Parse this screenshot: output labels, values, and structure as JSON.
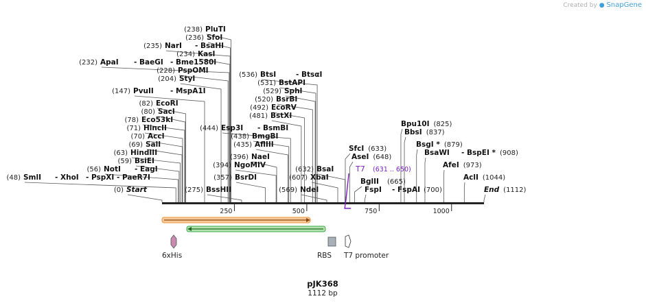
{
  "header": {
    "created_by": "Created by",
    "brand": "SnapGene"
  },
  "plasmid": {
    "name": "pJK368",
    "length_label": "1112 bp",
    "length": 1112
  },
  "axis": {
    "ticks": [
      250,
      500,
      750,
      1000
    ],
    "tick_labels": [
      "250",
      "500",
      "750",
      "1000"
    ]
  },
  "colors": {
    "primer": "#7a1fc4",
    "orf_orange": "#e89a3c",
    "orf_green": "#3aa84a"
  },
  "sites": [
    {
      "name": "Start",
      "pos": 0,
      "pos_label": "(0)",
      "italic": true
    },
    {
      "name": "SmlI",
      "pos": 48,
      "pos_label": "(48)",
      "pre": ""
    },
    {
      "name": "XhoI",
      "pos": 48,
      "pos_label": "",
      "pre": "- "
    },
    {
      "name": "PspXI",
      "pos": 48,
      "pos_label": "",
      "pre": "- "
    },
    {
      "name": "PaeR7I",
      "pos": 48,
      "pos_label": "",
      "pre": "- "
    },
    {
      "name": "NotI",
      "pos": 56,
      "pos_label": "(56)"
    },
    {
      "name": "EagI",
      "pos": 56,
      "pos_label": "",
      "pre": "- "
    },
    {
      "name": "BsiEI",
      "pos": 59,
      "pos_label": "(59)"
    },
    {
      "name": "HindIII",
      "pos": 63,
      "pos_label": "(63)"
    },
    {
      "name": "SalI",
      "pos": 69,
      "pos_label": "(69)"
    },
    {
      "name": "AccI",
      "pos": 70,
      "pos_label": "(70)"
    },
    {
      "name": "HincII",
      "pos": 71,
      "pos_label": "(71)"
    },
    {
      "name": "Eco53kI",
      "pos": 78,
      "pos_label": "(78)"
    },
    {
      "name": "SacI",
      "pos": 80,
      "pos_label": "(80)"
    },
    {
      "name": "EcoRI",
      "pos": 82,
      "pos_label": "(82)"
    },
    {
      "name": "PvuII",
      "pos": 147,
      "pos_label": "(147)"
    },
    {
      "name": "MspA1I",
      "pos": 147,
      "pos_label": "",
      "pre": "- "
    },
    {
      "name": "StyI",
      "pos": 204,
      "pos_label": "(204)"
    },
    {
      "name": "PspOMI",
      "pos": 228,
      "pos_label": "(228)"
    },
    {
      "name": "ApaI",
      "pos": 232,
      "pos_label": "(232)"
    },
    {
      "name": "BaeGI",
      "pos": 232,
      "pos_label": "",
      "pre": "- "
    },
    {
      "name": "Bme1580I",
      "pos": 232,
      "pos_label": "",
      "pre": "- "
    },
    {
      "name": "KasI",
      "pos": 234,
      "pos_label": "(234)"
    },
    {
      "name": "NarI",
      "pos": 235,
      "pos_label": "(235)"
    },
    {
      "name": "BsaHI",
      "pos": 235,
      "pos_label": "",
      "pre": "- "
    },
    {
      "name": "SfoI",
      "pos": 236,
      "pos_label": "(236)"
    },
    {
      "name": "PluTI",
      "pos": 238,
      "pos_label": "(238)"
    },
    {
      "name": "BssHII",
      "pos": 275,
      "pos_label": "(275)"
    },
    {
      "name": "BsrDI",
      "pos": 357,
      "pos_label": "(357)"
    },
    {
      "name": "NgoMIV",
      "pos": 394,
      "pos_label": "(394)"
    },
    {
      "name": "NaeI",
      "pos": 396,
      "pos_label": "(396)"
    },
    {
      "name": "AflIII",
      "pos": 435,
      "pos_label": "(435)"
    },
    {
      "name": "BmgBI",
      "pos": 438,
      "pos_label": "(438)"
    },
    {
      "name": "Esp3I",
      "pos": 444,
      "pos_label": "(444)"
    },
    {
      "name": "BsmBI",
      "pos": 444,
      "pos_label": "",
      "pre": "- "
    },
    {
      "name": "BstXI",
      "pos": 481,
      "pos_label": "(481)"
    },
    {
      "name": "EcoRV",
      "pos": 492,
      "pos_label": "(492)"
    },
    {
      "name": "BsrBI",
      "pos": 520,
      "pos_label": "(520)"
    },
    {
      "name": "SphI",
      "pos": 529,
      "pos_label": "(529)"
    },
    {
      "name": "BstAPI",
      "pos": 531,
      "pos_label": "(531)"
    },
    {
      "name": "BtsI",
      "pos": 536,
      "pos_label": "(536)"
    },
    {
      "name": "BtsαI",
      "pos": 536,
      "pos_label": "",
      "pre": "- "
    },
    {
      "name": "NdeI",
      "pos": 569,
      "pos_label": "(569)"
    },
    {
      "name": "XbaI",
      "pos": 607,
      "pos_label": "(607)"
    },
    {
      "name": "BsaI",
      "pos": 632,
      "pos_label": "(632)"
    },
    {
      "name": "SfcI",
      "pos": 633,
      "pos_label": "(633)"
    },
    {
      "name": "AseI",
      "pos": 648,
      "pos_label": "(648)"
    },
    {
      "name": "BglII",
      "pos": 665,
      "pos_label": "(665)"
    },
    {
      "name": "FspI",
      "pos": 700,
      "pos_label": ""
    },
    {
      "name": "FspAI",
      "pos": 700,
      "pos_label": "(700)",
      "pre": "- "
    },
    {
      "name": "Bpu10I",
      "pos": 825,
      "pos_label": "(825)"
    },
    {
      "name": "BbsI",
      "pos": 837,
      "pos_label": "(837)"
    },
    {
      "name": "BsgI *",
      "pos": 879,
      "pos_label": "(879)"
    },
    {
      "name": "BsaWI",
      "pos": 908,
      "pos_label": ""
    },
    {
      "name": "BspEI *",
      "pos": 908,
      "pos_label": "(908)",
      "pre": "- "
    },
    {
      "name": "AfeI",
      "pos": 973,
      "pos_label": "(973)"
    },
    {
      "name": "AclI",
      "pos": 1044,
      "pos_label": "(1044)"
    },
    {
      "name": "End",
      "pos": 1112,
      "pos_label": "(1112)",
      "italic": true
    }
  ],
  "primer": {
    "name": "T7",
    "range_label": "(631 .. 650)"
  },
  "features": [
    {
      "name": "6xHis",
      "icon": "6xhis-arrow-icon"
    },
    {
      "name": "RBS",
      "icon": "rbs-box-icon"
    },
    {
      "name": "T7 promoter",
      "icon": "t7-promoter-arrow-icon"
    }
  ]
}
